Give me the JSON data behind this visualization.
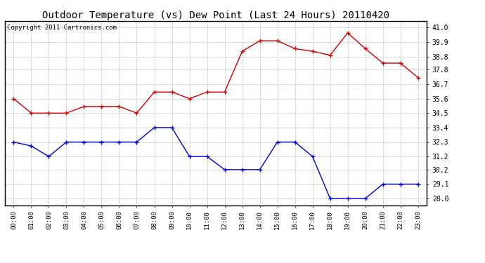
{
  "title": "Outdoor Temperature (vs) Dew Point (Last 24 Hours) 20110420",
  "copyright_text": "Copyright 2011 Cartronics.com",
  "hours": [
    "00:00",
    "01:00",
    "02:00",
    "03:00",
    "04:00",
    "05:00",
    "06:00",
    "07:00",
    "08:00",
    "09:00",
    "10:00",
    "11:00",
    "12:00",
    "13:00",
    "14:00",
    "15:00",
    "16:00",
    "17:00",
    "18:00",
    "19:00",
    "20:00",
    "21:00",
    "22:00",
    "23:00"
  ],
  "temp_red": [
    35.6,
    34.5,
    34.5,
    34.5,
    35.0,
    35.0,
    35.0,
    34.5,
    36.1,
    36.1,
    35.6,
    36.1,
    36.1,
    39.2,
    40.0,
    40.0,
    39.4,
    39.2,
    38.9,
    40.6,
    39.4,
    38.3,
    38.3,
    37.2
  ],
  "dew_blue": [
    32.3,
    32.0,
    31.2,
    32.3,
    32.3,
    32.3,
    32.3,
    32.3,
    33.4,
    33.4,
    31.2,
    31.2,
    30.2,
    30.2,
    30.2,
    32.3,
    32.3,
    31.2,
    28.0,
    28.0,
    28.0,
    29.1,
    29.1,
    29.1
  ],
  "ylim_min": 27.5,
  "ylim_max": 41.5,
  "yticks": [
    28.0,
    29.1,
    30.2,
    31.2,
    32.3,
    33.4,
    34.5,
    35.6,
    36.7,
    37.8,
    38.8,
    39.9,
    41.0
  ],
  "red_color": "#cc0000",
  "blue_color": "#0000cc",
  "bg_color": "#ffffff",
  "grid_color": "#bbbbbb",
  "title_fontsize": 10,
  "copyright_fontsize": 6.5,
  "tick_fontsize": 6.5,
  "ytick_fontsize": 7
}
